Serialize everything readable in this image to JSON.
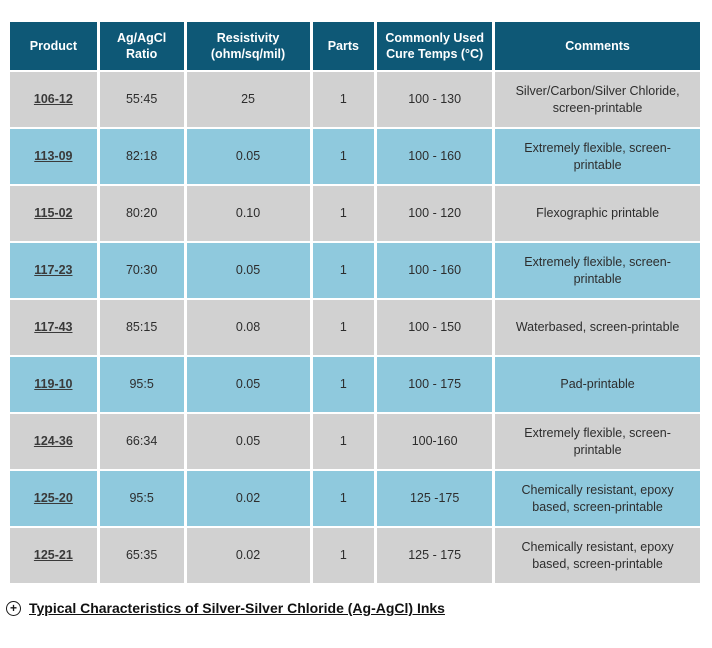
{
  "colors": {
    "header_bg": "#0E5876",
    "row_gray": "#D1D1D1",
    "row_blue": "#8FC9DD",
    "header_text": "#FFFFFF",
    "cell_text": "#2D2D2D"
  },
  "table": {
    "columns": [
      {
        "key": "product",
        "label": "Product"
      },
      {
        "key": "ratio",
        "label": "Ag/AgCl Ratio"
      },
      {
        "key": "resistivity",
        "label": "Resistivity (ohm/sq/mil)"
      },
      {
        "key": "parts",
        "label": "Parts"
      },
      {
        "key": "cure_temps",
        "label": "Commonly Used Cure Temps (°C)"
      },
      {
        "key": "comments",
        "label": "Comments"
      }
    ],
    "rows": [
      {
        "product": "106-12",
        "ratio": "55:45",
        "resistivity": "25",
        "parts": "1",
        "cure_temps": "100 - 130",
        "comments": "Silver/Carbon/Silver Chloride, screen-printable"
      },
      {
        "product": "113-09",
        "ratio": "82:18",
        "resistivity": "0.05",
        "parts": "1",
        "cure_temps": "100 - 160",
        "comments": "Extremely flexible, screen-printable"
      },
      {
        "product": "115-02",
        "ratio": "80:20",
        "resistivity": "0.10",
        "parts": "1",
        "cure_temps": "100 - 120",
        "comments": "Flexographic printable"
      },
      {
        "product": "117-23",
        "ratio": "70:30",
        "resistivity": "0.05",
        "parts": "1",
        "cure_temps": "100 - 160",
        "comments": "Extremely flexible, screen-printable"
      },
      {
        "product": "117-43",
        "ratio": "85:15",
        "resistivity": "0.08",
        "parts": "1",
        "cure_temps": "100 - 150",
        "comments": "Waterbased, screen-printable"
      },
      {
        "product": "119-10",
        "ratio": "95:5",
        "resistivity": "0.05",
        "parts": "1",
        "cure_temps": "100 - 175",
        "comments": "Pad-printable"
      },
      {
        "product": "124-36",
        "ratio": "66:34",
        "resistivity": "0.05",
        "parts": "1",
        "cure_temps": "100-160",
        "comments": "Extremely flexible, screen-printable"
      },
      {
        "product": "125-20",
        "ratio": "95:5",
        "resistivity": "0.02",
        "parts": "1",
        "cure_temps": "125 -175",
        "comments": "Chemically resistant, epoxy based, screen-printable"
      },
      {
        "product": "125-21",
        "ratio": "65:35",
        "resistivity": "0.02",
        "parts": "1",
        "cure_temps": "125 - 175",
        "comments": "Chemically resistant, epoxy based, screen-printable"
      }
    ]
  },
  "footer": {
    "expand_icon": "circled-plus",
    "expand_icon_glyph": "+",
    "link_label": "Typical Characteristics of Silver-Silver Chloride (Ag-AgCl) Inks"
  }
}
